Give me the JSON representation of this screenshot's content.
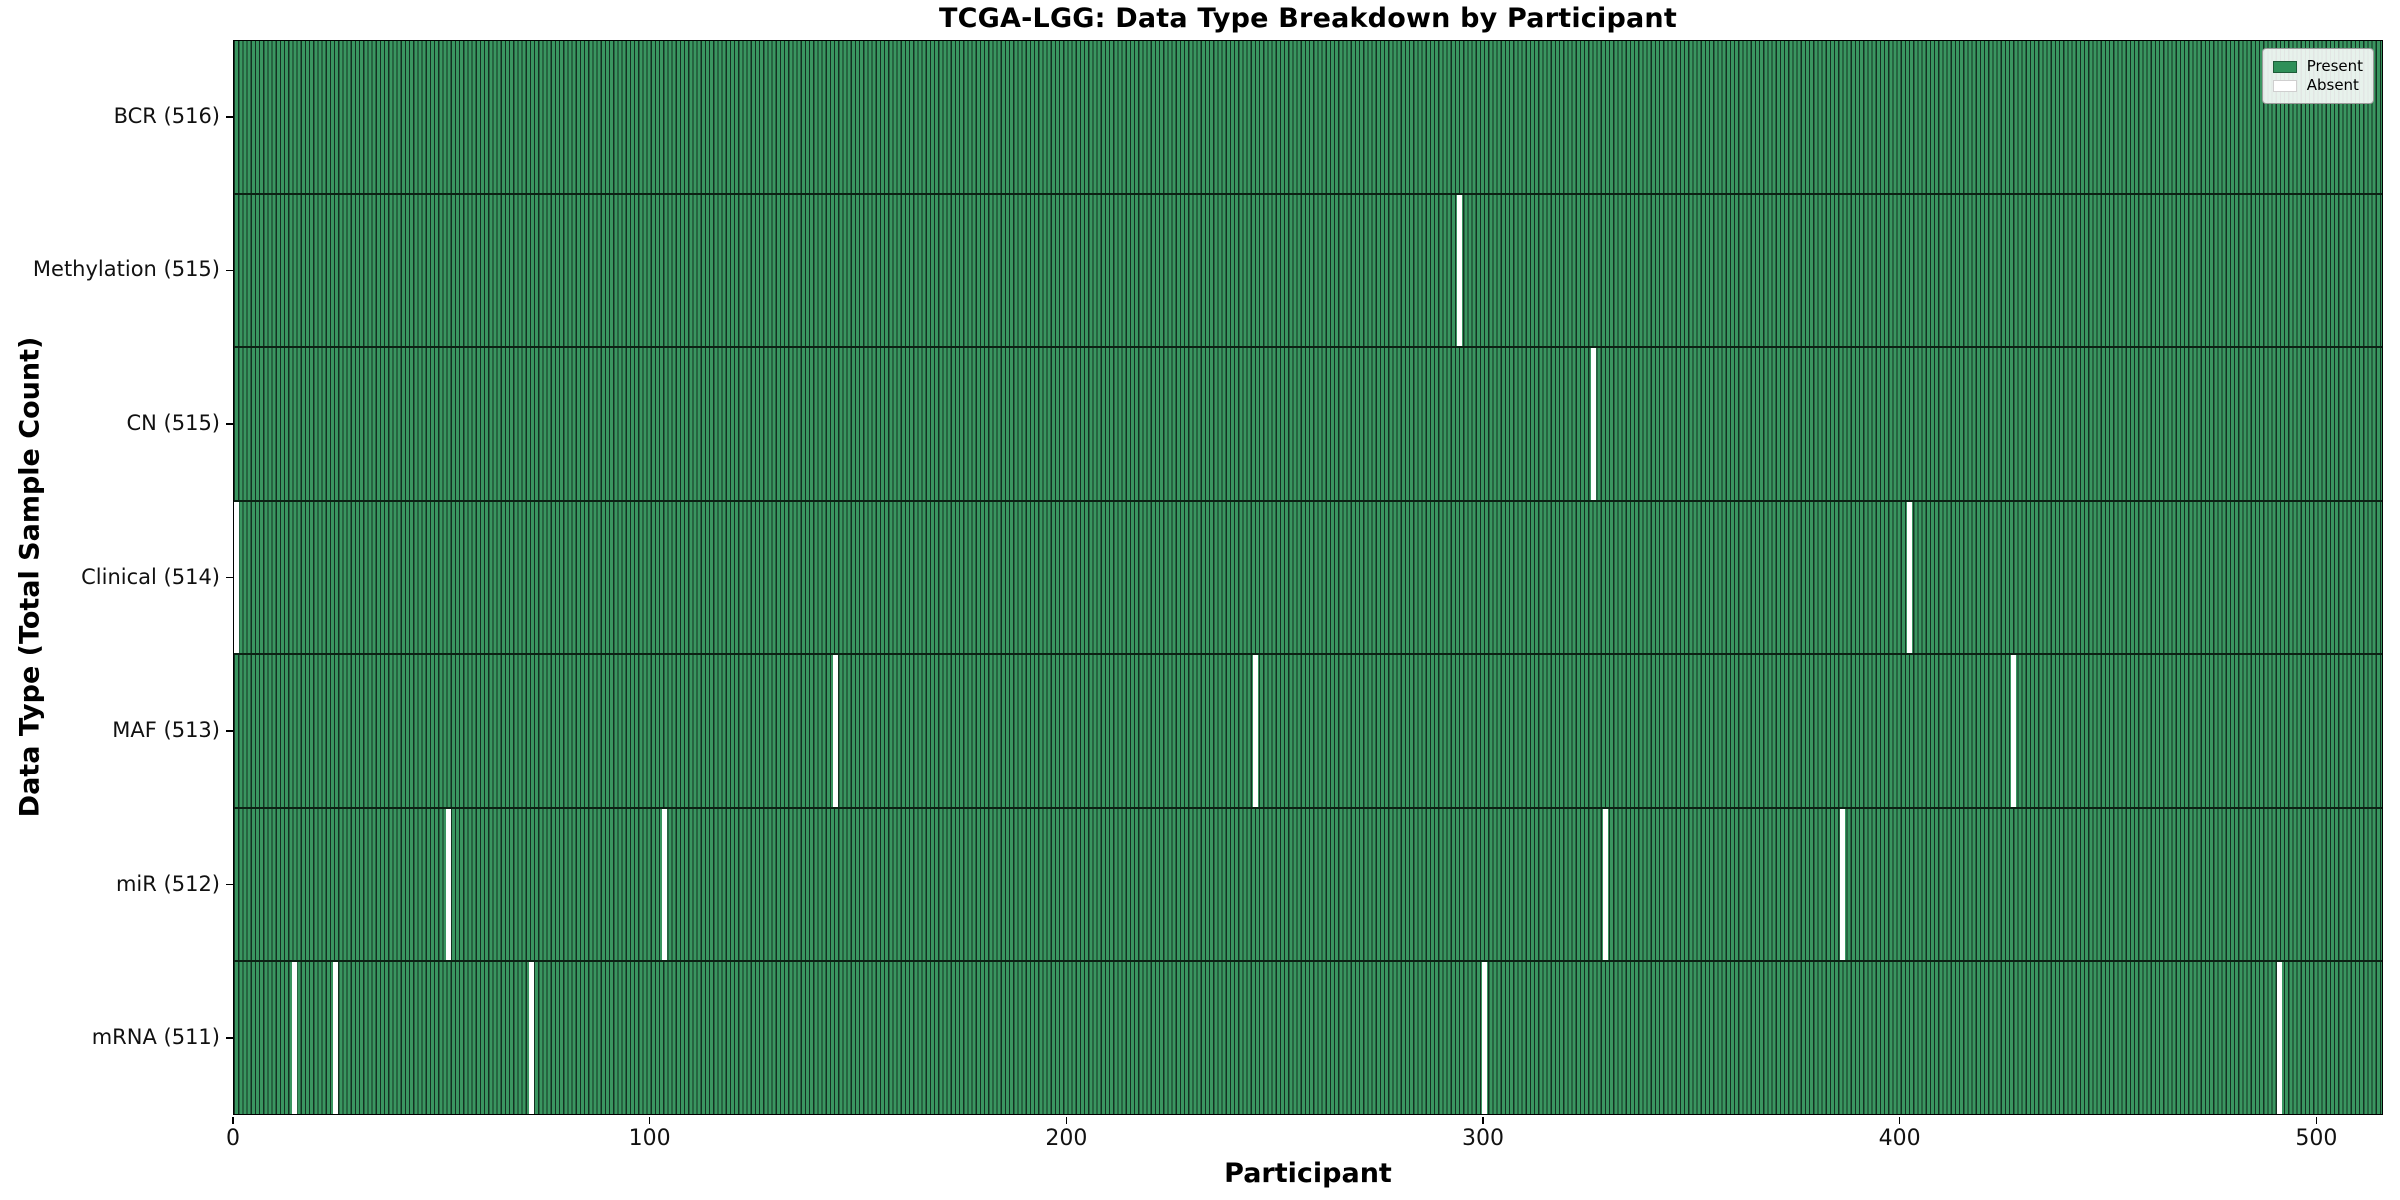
{
  "title": "TCGA-LGG: Data Type Breakdown by Participant",
  "colors": {
    "present": "#2f9059",
    "present_edge": "#143122",
    "absent": "#ffffff",
    "axis": "#000000"
  },
  "chart_data": {
    "type": "heatmap",
    "title": "TCGA-LGG: Data Type Breakdown by Participant",
    "xlabel": "Participant",
    "ylabel": "Data Type (Total Sample Count)",
    "n_participants": 516,
    "xlim": [
      0,
      516
    ],
    "x_ticks": [
      0,
      100,
      200,
      300,
      400,
      500
    ],
    "grid": false,
    "legend_position": "upper right",
    "legend": [
      {
        "label": "Present",
        "color": "#2f9059"
      },
      {
        "label": "Absent",
        "color": "#ffffff"
      }
    ],
    "rows": [
      {
        "label": "BCR (516)",
        "total": 516,
        "absent_participants": []
      },
      {
        "label": "Methylation (515)",
        "total": 515,
        "absent_participants": [
          294
        ]
      },
      {
        "label": "CN (515)",
        "total": 515,
        "absent_participants": [
          326
        ]
      },
      {
        "label": "Clinical (514)",
        "total": 514,
        "absent_participants": [
          0,
          402
        ]
      },
      {
        "label": "MAF (513)",
        "total": 513,
        "absent_participants": [
          144,
          245,
          427
        ]
      },
      {
        "label": "miR (512)",
        "total": 512,
        "absent_participants": [
          51,
          103,
          329,
          386
        ]
      },
      {
        "label": "mRNA (511)",
        "total": 511,
        "absent_participants": [
          14,
          24,
          71,
          300,
          491
        ]
      }
    ]
  }
}
